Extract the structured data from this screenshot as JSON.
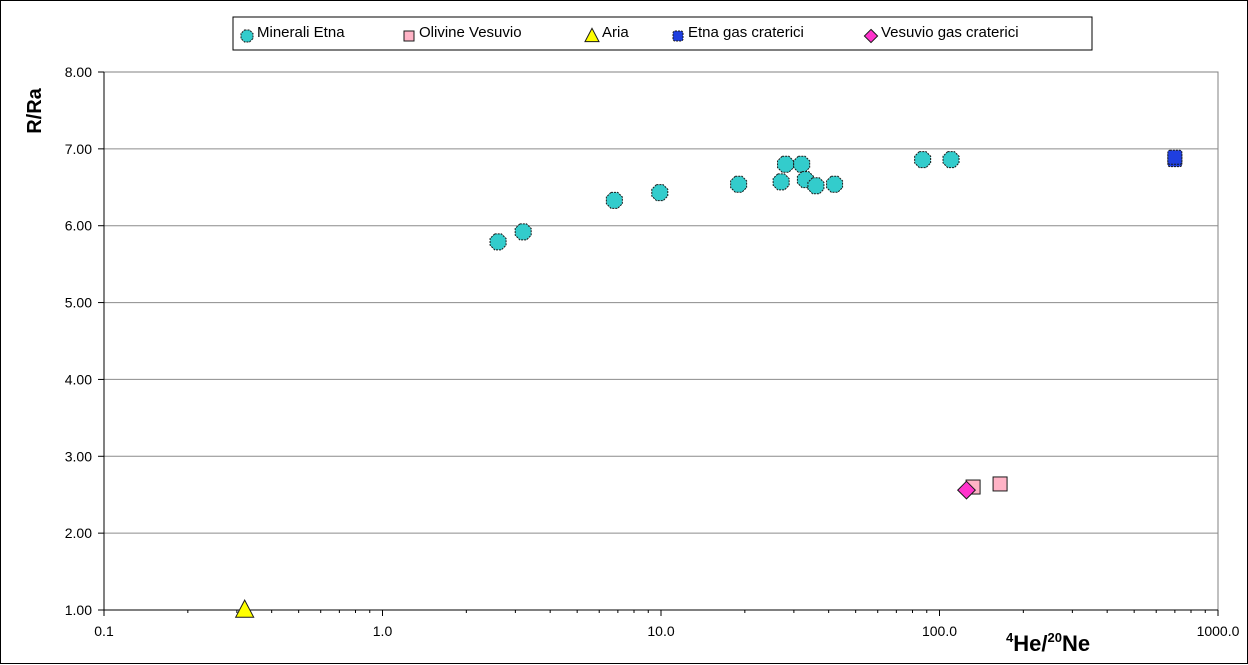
{
  "chart_data": {
    "type": "scatter",
    "title": "",
    "xlabel": {
      "sup1": "4",
      "base1": "He/",
      "sup2": "20",
      "base2": "Ne"
    },
    "ylabel": "R/Ra",
    "xscale": "log",
    "xlim": [
      0.1,
      1000
    ],
    "ylim": [
      1,
      8
    ],
    "x_tick_labels": [
      "0.1",
      "1.0",
      "10.0",
      "100.0",
      "1000.0"
    ],
    "x_tick_values": [
      0.1,
      1,
      10,
      100,
      1000
    ],
    "y_tick_labels": [
      "1.00",
      "2.00",
      "3.00",
      "4.00",
      "5.00",
      "6.00",
      "7.00",
      "8.00"
    ],
    "y_tick_values": [
      1,
      2,
      3,
      4,
      5,
      6,
      7,
      8
    ],
    "grid": "horizontal",
    "legend_position": "top",
    "series": [
      {
        "name": "Minerali Etna",
        "marker": "octagon",
        "color": "#33CCCC",
        "points": [
          {
            "x": 2.6,
            "y": 5.79
          },
          {
            "x": 3.2,
            "y": 5.92
          },
          {
            "x": 6.8,
            "y": 6.33
          },
          {
            "x": 9.9,
            "y": 6.43
          },
          {
            "x": 19,
            "y": 6.54
          },
          {
            "x": 27,
            "y": 6.57
          },
          {
            "x": 28,
            "y": 6.8
          },
          {
            "x": 32,
            "y": 6.8
          },
          {
            "x": 33,
            "y": 6.6
          },
          {
            "x": 36,
            "y": 6.52
          },
          {
            "x": 42,
            "y": 6.54
          },
          {
            "x": 87,
            "y": 6.86
          },
          {
            "x": 110,
            "y": 6.86
          }
        ]
      },
      {
        "name": "Olivine Vesuvio",
        "marker": "square",
        "color": "#FFB3C6",
        "points": [
          {
            "x": 132,
            "y": 2.6
          },
          {
            "x": 165,
            "y": 2.64
          }
        ]
      },
      {
        "name": "Aria",
        "marker": "triangle",
        "color": "#FFFF00",
        "points": [
          {
            "x": 0.32,
            "y": 1.0
          }
        ]
      },
      {
        "name": "Etna gas craterici",
        "marker": "square-dot",
        "color": "#1F3FDF",
        "points": [
          {
            "x": 700,
            "y": 6.86
          },
          {
            "x": 700,
            "y": 6.89
          }
        ]
      },
      {
        "name": "Vesuvio gas craterici",
        "marker": "diamond",
        "color": "#FF33CC",
        "points": [
          {
            "x": 125,
            "y": 2.56
          }
        ]
      }
    ]
  }
}
